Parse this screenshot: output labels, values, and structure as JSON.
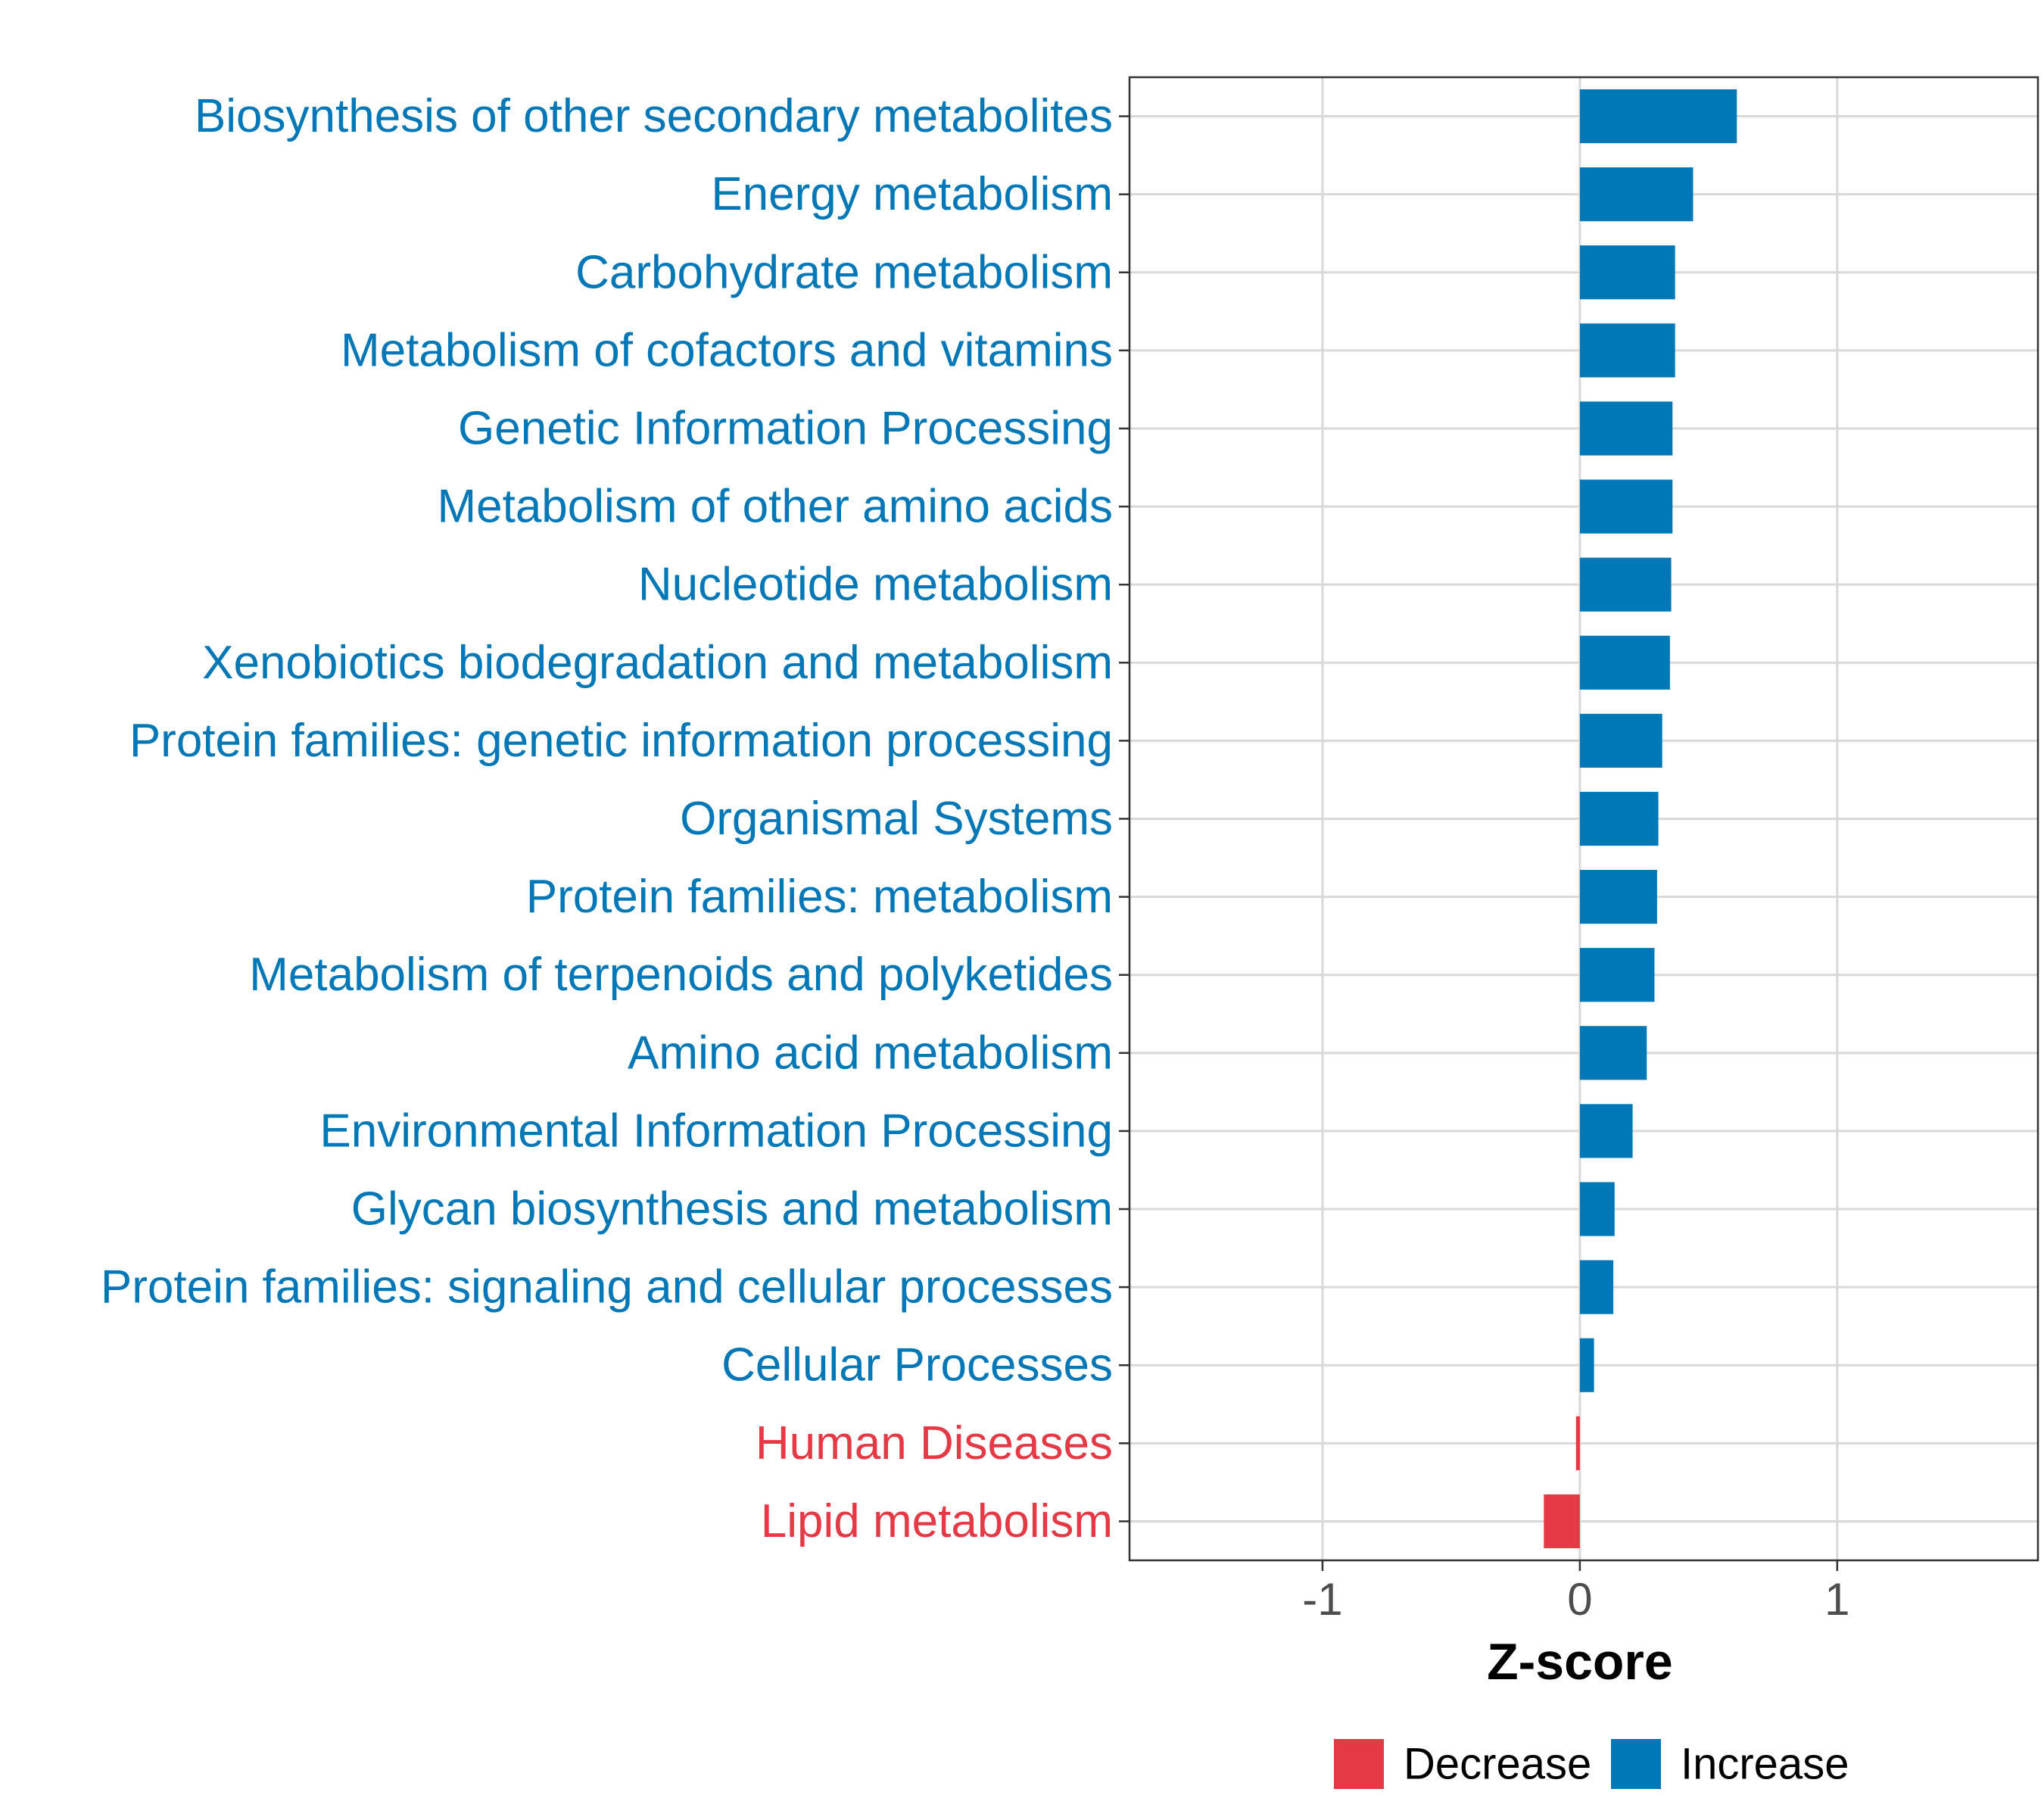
{
  "chart_data": {
    "type": "bar",
    "orientation": "horizontal",
    "title": "",
    "xlabel": "Z-score",
    "ylabel": "",
    "xlim": [
      -1.75,
      1.78
    ],
    "x_ticks": [
      {
        "value": -1,
        "label": "-1"
      },
      {
        "value": 0,
        "label": "0"
      },
      {
        "value": 1,
        "label": "1"
      }
    ],
    "grid": true,
    "categories": [
      "Biosynthesis of other secondary metabolites",
      "Energy metabolism",
      "Carbohydrate metabolism",
      "Metabolism of cofactors and vitamins",
      "Genetic Information Processing",
      "Metabolism of other amino acids",
      "Nucleotide metabolism",
      "Xenobiotics biodegradation and metabolism",
      "Protein families: genetic information processing",
      "Organismal Systems",
      "Protein families: metabolism",
      "Metabolism of terpenoids and polyketides",
      "Amino acid metabolism",
      "Environmental Information Processing",
      "Glycan biosynthesis and metabolism",
      "Protein families: signaling and cellular processes",
      "Cellular Processes",
      "Human Diseases",
      "Lipid metabolism"
    ],
    "values": [
      0.61,
      0.44,
      0.37,
      0.37,
      0.36,
      0.36,
      0.355,
      0.35,
      0.32,
      0.305,
      0.3,
      0.29,
      0.26,
      0.205,
      0.135,
      0.13,
      0.055,
      -0.015,
      -0.14
    ],
    "groups": [
      "Increase",
      "Increase",
      "Increase",
      "Increase",
      "Increase",
      "Increase",
      "Increase",
      "Increase",
      "Increase",
      "Increase",
      "Increase",
      "Increase",
      "Increase",
      "Increase",
      "Increase",
      "Increase",
      "Increase",
      "Decrease",
      "Decrease"
    ],
    "legend": {
      "position": "bottom",
      "entries": [
        {
          "name": "Decrease",
          "color": "#e63946"
        },
        {
          "name": "Increase",
          "color": "#0077b6"
        }
      ]
    },
    "colors": {
      "Increase": "#0077b6",
      "Decrease": "#e63946",
      "grid": "#d9d9d9",
      "panel_border": "#333333",
      "tick_text": "#4d4d4d"
    }
  }
}
